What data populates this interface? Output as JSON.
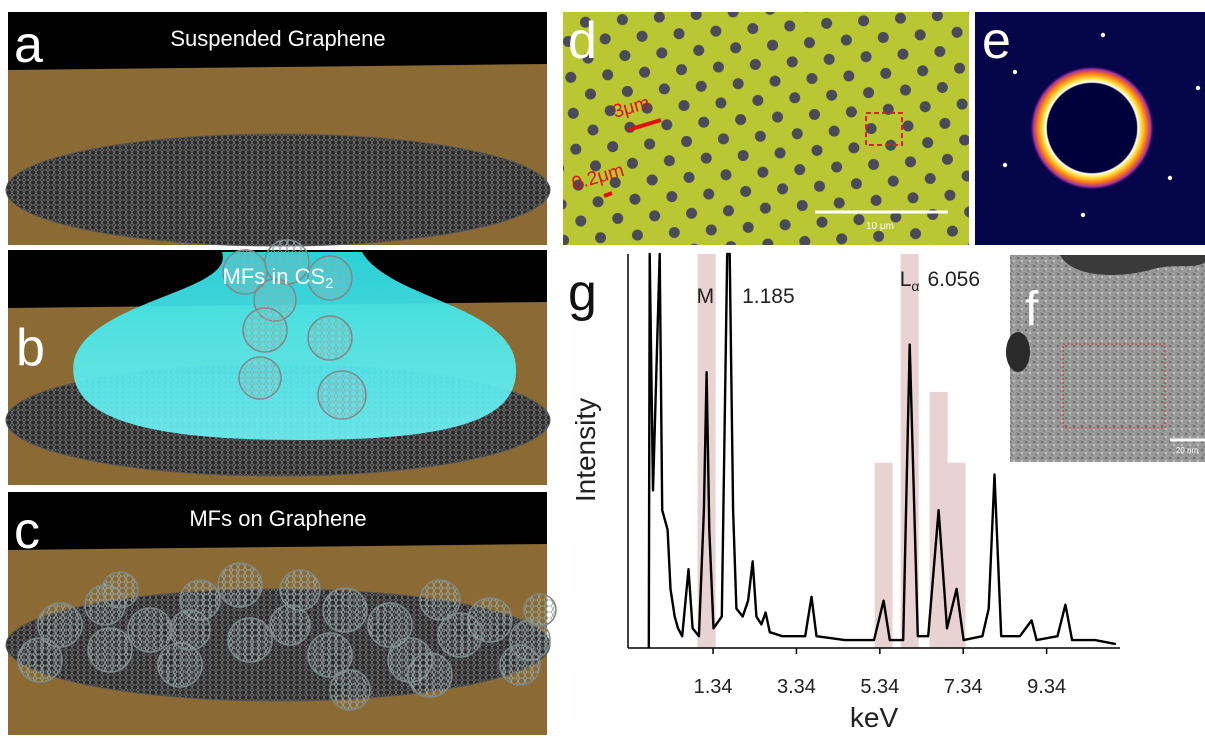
{
  "panels": {
    "a": {
      "label": "a",
      "title": "Suspended Graphene"
    },
    "b": {
      "label": "b",
      "title": "MFs in CS",
      "title_subscript": "2"
    },
    "c": {
      "label": "c",
      "title": "MFs on Graphene"
    },
    "d": {
      "label": "d",
      "scale_marks": [
        "3μm",
        "0.2μm"
      ],
      "scale_bar": "10 μm"
    },
    "e": {
      "label": "e"
    },
    "f": {
      "label": "f",
      "scale_bar": "20 nm"
    }
  },
  "chart_data": {
    "type": "line",
    "panel_label": "g",
    "x_label": "keV",
    "y_label": "Intensity",
    "x": [
      -0.2,
      -0.18,
      -0.1,
      0.06,
      0.12,
      0.25,
      0.32,
      0.42,
      0.5,
      0.6,
      0.75,
      0.85,
      1.0,
      1.12,
      1.185,
      1.25,
      1.35,
      1.55,
      1.68,
      1.74,
      1.82,
      1.9,
      2.05,
      2.18,
      2.29,
      2.38,
      2.5,
      2.6,
      2.7,
      3.0,
      3.55,
      3.7,
      3.82,
      4.5,
      5.2,
      5.43,
      5.58,
      5.9,
      6.056,
      6.25,
      6.5,
      6.75,
      6.95,
      7.18,
      7.35,
      7.8,
      7.95,
      8.09,
      8.25,
      8.7,
      8.98,
      9.1,
      9.6,
      9.79,
      9.95,
      10.5,
      11.0
    ],
    "series": [
      {
        "color": "#000000",
        "values": [
          0,
          100,
          40,
          100,
          35,
          30,
          15,
          8,
          5,
          3,
          20,
          5,
          3,
          35,
          70,
          30,
          5,
          8,
          100,
          100,
          35,
          10,
          8,
          12,
          22,
          8,
          6,
          9,
          4,
          3,
          3,
          13,
          3,
          2,
          2,
          12,
          2,
          2,
          77,
          3,
          3,
          35,
          5,
          15,
          2,
          3,
          10,
          44,
          3,
          3,
          7,
          2,
          3,
          11,
          2,
          2,
          1
        ]
      }
    ],
    "xlim": [
      -0.7,
      11.1
    ],
    "xticks": [
      1.34,
      3.34,
      5.34,
      7.34,
      9.34
    ],
    "ylim": [
      0,
      100
    ],
    "annotations": [
      {
        "text": "M",
        "value": 1.185
      },
      {
        "text": "L",
        "subscript": "α",
        "value": 6.056
      }
    ],
    "bands": [
      {
        "x": 5.43,
        "top": 47
      },
      {
        "x": 6.75,
        "top": 65
      },
      {
        "x": 7.18,
        "top": 47
      }
    ],
    "band_color": "#e8d2d2"
  }
}
